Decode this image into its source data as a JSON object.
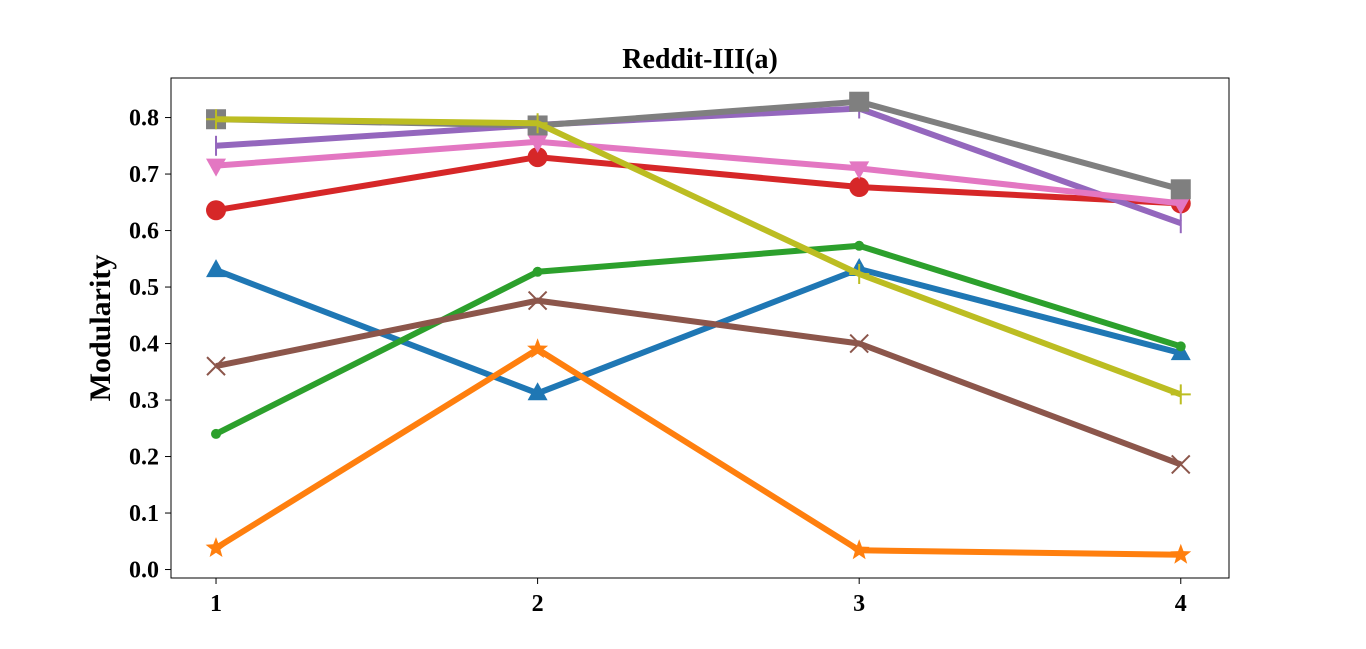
{
  "chart_data": {
    "type": "line",
    "title": "Reddit-III(a)",
    "xlabel": "",
    "ylabel": "Modularity",
    "x": [
      1,
      2,
      3,
      4
    ],
    "xticks": [
      "1",
      "2",
      "3",
      "4"
    ],
    "xlim": [
      0.86,
      4.15
    ],
    "ylim": [
      -0.015,
      0.87
    ],
    "yticks": [
      0.0,
      0.1,
      0.2,
      0.3,
      0.4,
      0.5,
      0.6,
      0.7,
      0.8
    ],
    "ytick_labels": [
      "0.0",
      "0.1",
      "0.2",
      "0.3",
      "0.4",
      "0.5",
      "0.6",
      "0.7",
      "0.8"
    ],
    "grid": false,
    "series": [
      {
        "color": "#1f77b4",
        "marker": "triangle-up",
        "values": [
          0.53,
          0.312,
          0.532,
          0.383
        ]
      },
      {
        "color": "#ff7f0e",
        "marker": "star",
        "values": [
          0.038,
          0.39,
          0.034,
          0.026
        ]
      },
      {
        "color": "#2ca02c",
        "marker": "circle-small",
        "values": [
          0.24,
          0.527,
          0.573,
          0.395
        ]
      },
      {
        "color": "#d62728",
        "marker": "circle",
        "values": [
          0.636,
          0.73,
          0.677,
          0.648
        ]
      },
      {
        "color": "#9467bd",
        "marker": "vline",
        "values": [
          0.75,
          0.787,
          0.816,
          0.613
        ]
      },
      {
        "color": "#8c564b",
        "marker": "x",
        "values": [
          0.36,
          0.476,
          0.4,
          0.186
        ]
      },
      {
        "color": "#e377c2",
        "marker": "triangle-down",
        "values": [
          0.715,
          0.757,
          0.71,
          0.648
        ]
      },
      {
        "color": "#7f7f7f",
        "marker": "square",
        "values": [
          0.797,
          0.786,
          0.828,
          0.673
        ]
      },
      {
        "color": "#bcbd22",
        "marker": "plus",
        "values": [
          0.797,
          0.79,
          0.523,
          0.31
        ]
      }
    ]
  }
}
